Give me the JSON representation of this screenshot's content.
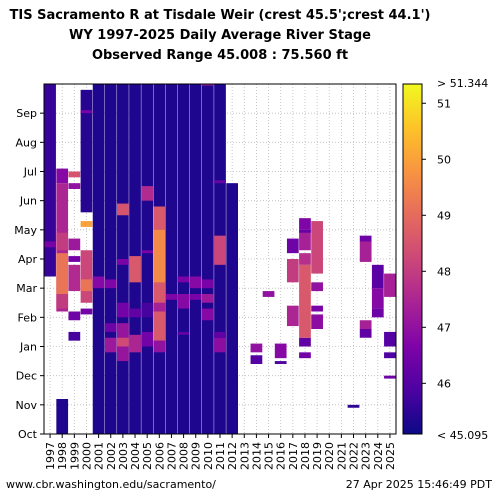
{
  "chart_data": {
    "type": "heatmap",
    "title_lines": [
      "TIS Sacramento R at Tisdale Weir (crest 45.5';crest 44.1')",
      "WY 1997-2025 Daily Average River Stage",
      "Observed Range 45.008 : 75.560 ft"
    ],
    "x_categories": [
      "1997",
      "1998",
      "1999",
      "2000",
      "2001",
      "2002",
      "2003",
      "2004",
      "2005",
      "2006",
      "2007",
      "2008",
      "2009",
      "2010",
      "2011",
      "2012",
      "2013",
      "2014",
      "2015",
      "2016",
      "2017",
      "2018",
      "2019",
      "2020",
      "2021",
      "2022",
      "2023",
      "2024",
      "2025"
    ],
    "y_categories": [
      "Oct",
      "Nov",
      "Dec",
      "Jan",
      "Feb",
      "Mar",
      "Apr",
      "May",
      "Jun",
      "Jul",
      "Aug",
      "Sep"
    ],
    "colorbar": {
      "colormap": "plasma",
      "min": 45.095,
      "max": 51.344,
      "ticks": [
        46,
        47,
        48,
        49,
        50,
        51
      ],
      "top_label": "> 51.344",
      "bottom_label": "< 45.095"
    },
    "grid": true,
    "cells": [
      {
        "year": "1997",
        "from": 5.4,
        "to": 12.0,
        "value": 45.6
      },
      {
        "year": "1997",
        "from": 6.4,
        "to": 6.6,
        "value": 46.6
      },
      {
        "year": "1998",
        "from": 0.0,
        "to": 1.2,
        "value": 45.3
      },
      {
        "year": "1998",
        "from": 4.2,
        "to": 8.6,
        "value": 47.5
      },
      {
        "year": "1998",
        "from": 4.8,
        "to": 6.2,
        "value": 49.2
      },
      {
        "year": "1998",
        "from": 4.3,
        "to": 4.8,
        "value": 48.0
      },
      {
        "year": "1998",
        "from": 6.3,
        "to": 6.9,
        "value": 48.0
      },
      {
        "year": "1998",
        "from": 8.6,
        "to": 9.1,
        "value": 46.8
      },
      {
        "year": "1999",
        "from": 3.2,
        "to": 3.5,
        "value": 45.8
      },
      {
        "year": "1999",
        "from": 3.9,
        "to": 4.2,
        "value": 46.4
      },
      {
        "year": "1999",
        "from": 4.9,
        "to": 5.8,
        "value": 47.6
      },
      {
        "year": "1999",
        "from": 5.9,
        "to": 6.1,
        "value": 46.5
      },
      {
        "year": "1999",
        "from": 6.3,
        "to": 6.7,
        "value": 47.2
      },
      {
        "year": "1999",
        "from": 8.4,
        "to": 8.6,
        "value": 47.0
      },
      {
        "year": "1999",
        "from": 8.8,
        "to": 9.0,
        "value": 48.5
      },
      {
        "year": "2000",
        "from": 4.1,
        "to": 4.3,
        "value": 46.5
      },
      {
        "year": "2000",
        "from": 4.5,
        "to": 6.3,
        "value": 48.2
      },
      {
        "year": "2000",
        "from": 4.9,
        "to": 5.3,
        "value": 49.2
      },
      {
        "year": "2000",
        "from": 7.1,
        "to": 7.3,
        "value": 50.0
      },
      {
        "year": "2000",
        "from": 7.6,
        "to": 11.8,
        "value": 45.4
      },
      {
        "year": "2000",
        "from": 11.0,
        "to": 11.1,
        "value": 46.6
      },
      {
        "year": "2001",
        "from": 0.0,
        "to": 12.0,
        "value": 45.3
      },
      {
        "year": "2001",
        "from": 5.0,
        "to": 5.4,
        "value": 46.8
      },
      {
        "year": "2002",
        "from": 0.0,
        "to": 12.0,
        "value": 45.3
      },
      {
        "year": "2002",
        "from": 2.8,
        "to": 3.3,
        "value": 47.2
      },
      {
        "year": "2002",
        "from": 3.5,
        "to": 3.8,
        "value": 46.4
      },
      {
        "year": "2002",
        "from": 5.0,
        "to": 5.3,
        "value": 46.7
      },
      {
        "year": "2003",
        "from": 0.0,
        "to": 12.0,
        "value": 45.3
      },
      {
        "year": "2003",
        "from": 2.5,
        "to": 3.8,
        "value": 47.1
      },
      {
        "year": "2003",
        "from": 3.0,
        "to": 3.3,
        "value": 48.3
      },
      {
        "year": "2003",
        "from": 4.0,
        "to": 4.5,
        "value": 46.5
      },
      {
        "year": "2003",
        "from": 5.8,
        "to": 6.0,
        "value": 46.6
      },
      {
        "year": "2003",
        "from": 7.5,
        "to": 7.9,
        "value": 48.5
      },
      {
        "year": "2004",
        "from": 0.0,
        "to": 12.0,
        "value": 45.3
      },
      {
        "year": "2004",
        "from": 2.8,
        "to": 3.4,
        "value": 47.5
      },
      {
        "year": "2004",
        "from": 4.0,
        "to": 4.3,
        "value": 46.2
      },
      {
        "year": "2004",
        "from": 5.2,
        "to": 6.1,
        "value": 48.6
      },
      {
        "year": "2005",
        "from": 0.0,
        "to": 12.0,
        "value": 45.3
      },
      {
        "year": "2005",
        "from": 3.0,
        "to": 3.5,
        "value": 46.5
      },
      {
        "year": "2005",
        "from": 4.0,
        "to": 4.5,
        "value": 45.8
      },
      {
        "year": "2005",
        "from": 6.2,
        "to": 6.3,
        "value": 46.6
      },
      {
        "year": "2005",
        "from": 8.0,
        "to": 8.5,
        "value": 47.6
      },
      {
        "year": "2006",
        "from": 0.0,
        "to": 12.0,
        "value": 45.3
      },
      {
        "year": "2006",
        "from": 2.8,
        "to": 3.2,
        "value": 47.0
      },
      {
        "year": "2006",
        "from": 3.2,
        "to": 7.8,
        "value": 48.6
      },
      {
        "year": "2006",
        "from": 5.2,
        "to": 7.0,
        "value": 49.6
      },
      {
        "year": "2006",
        "from": 4.2,
        "to": 4.5,
        "value": 47.4
      },
      {
        "year": "2007",
        "from": 0.0,
        "to": 12.0,
        "value": 45.3
      },
      {
        "year": "2007",
        "from": 4.6,
        "to": 4.8,
        "value": 46.7
      },
      {
        "year": "2008",
        "from": 0.0,
        "to": 12.0,
        "value": 45.3
      },
      {
        "year": "2008",
        "from": 3.4,
        "to": 3.5,
        "value": 46.2
      },
      {
        "year": "2008",
        "from": 4.3,
        "to": 4.8,
        "value": 46.8
      },
      {
        "year": "2008",
        "from": 5.2,
        "to": 5.4,
        "value": 46.6
      },
      {
        "year": "2009",
        "from": 0.0,
        "to": 12.0,
        "value": 45.3
      },
      {
        "year": "2009",
        "from": 4.6,
        "to": 4.8,
        "value": 46.6
      },
      {
        "year": "2009",
        "from": 5.0,
        "to": 5.4,
        "value": 46.8
      },
      {
        "year": "2010",
        "from": 0.0,
        "to": 12.0,
        "value": 45.3
      },
      {
        "year": "2010",
        "from": 3.9,
        "to": 4.3,
        "value": 46.8
      },
      {
        "year": "2010",
        "from": 4.5,
        "to": 4.8,
        "value": 47.2
      },
      {
        "year": "2010",
        "from": 5.0,
        "to": 5.3,
        "value": 46.6
      },
      {
        "year": "2010",
        "from": 12.0,
        "to": 12.1,
        "value": 47.4
      },
      {
        "year": "2011",
        "from": 0.0,
        "to": 12.0,
        "value": 45.3
      },
      {
        "year": "2011",
        "from": 2.8,
        "to": 3.3,
        "value": 46.9
      },
      {
        "year": "2011",
        "from": 3.3,
        "to": 3.5,
        "value": 46.2
      },
      {
        "year": "2011",
        "from": 5.8,
        "to": 6.8,
        "value": 48.2
      },
      {
        "year": "2011",
        "from": 8.6,
        "to": 8.7,
        "value": 46.3
      },
      {
        "year": "2012",
        "from": 0.0,
        "to": 8.6,
        "value": 45.3
      },
      {
        "year": "2014",
        "from": 2.4,
        "to": 2.7,
        "value": 46.0
      },
      {
        "year": "2014",
        "from": 2.8,
        "to": 3.1,
        "value": 47.0
      },
      {
        "year": "2016",
        "from": 2.6,
        "to": 3.1,
        "value": 46.8
      },
      {
        "year": "2016",
        "from": 2.4,
        "to": 2.5,
        "value": 45.9
      },
      {
        "year": "2015",
        "from": 4.7,
        "to": 4.9,
        "value": 47.0
      },
      {
        "year": "2017",
        "from": 3.7,
        "to": 4.4,
        "value": 47.5
      },
      {
        "year": "2017",
        "from": 5.2,
        "to": 6.0,
        "value": 48.0
      },
      {
        "year": "2017",
        "from": 6.2,
        "to": 6.7,
        "value": 46.4
      },
      {
        "year": "2018",
        "from": 2.6,
        "to": 2.8,
        "value": 46.5
      },
      {
        "year": "2018",
        "from": 3.0,
        "to": 3.3,
        "value": 46.2
      },
      {
        "year": "2018",
        "from": 3.3,
        "to": 5.8,
        "value": 48.6
      },
      {
        "year": "2018",
        "from": 5.8,
        "to": 6.2,
        "value": 47.7
      },
      {
        "year": "2018",
        "from": 6.3,
        "to": 7.0,
        "value": 47.4
      },
      {
        "year": "2018",
        "from": 7.0,
        "to": 7.4,
        "value": 46.7
      },
      {
        "year": "2018",
        "from": 6.9,
        "to": 7.0,
        "value": 46.3
      },
      {
        "year": "2019",
        "from": 3.6,
        "to": 4.1,
        "value": 46.9
      },
      {
        "year": "2019",
        "from": 4.2,
        "to": 4.4,
        "value": 46.6
      },
      {
        "year": "2019",
        "from": 4.9,
        "to": 5.2,
        "value": 47.0
      },
      {
        "year": "2019",
        "from": 5.5,
        "to": 7.3,
        "value": 48.2
      },
      {
        "year": "2022",
        "from": 0.9,
        "to": 1.0,
        "value": 45.5
      },
      {
        "year": "2023",
        "from": 3.3,
        "to": 3.6,
        "value": 46.2
      },
      {
        "year": "2023",
        "from": 3.6,
        "to": 3.9,
        "value": 47.4
      },
      {
        "year": "2023",
        "from": 5.9,
        "to": 6.6,
        "value": 47.4
      },
      {
        "year": "2023",
        "from": 6.6,
        "to": 6.8,
        "value": 46.4
      },
      {
        "year": "2024",
        "from": 4.0,
        "to": 4.3,
        "value": 46.4
      },
      {
        "year": "2024",
        "from": 4.3,
        "to": 5.0,
        "value": 46.8
      },
      {
        "year": "2024",
        "from": 5.0,
        "to": 5.8,
        "value": 46.1
      },
      {
        "year": "2025",
        "from": 1.9,
        "to": 2.0,
        "value": 46.4
      },
      {
        "year": "2025",
        "from": 2.6,
        "to": 2.8,
        "value": 45.9
      },
      {
        "year": "2025",
        "from": 3.0,
        "to": 3.5,
        "value": 46.0
      },
      {
        "year": "2025",
        "from": 4.7,
        "to": 5.5,
        "value": 47.4
      }
    ]
  },
  "footer": {
    "source_url": "www.cbr.washington.edu/sacramento/",
    "timestamp": "27 Apr 2025 15:46:49 PDT"
  }
}
